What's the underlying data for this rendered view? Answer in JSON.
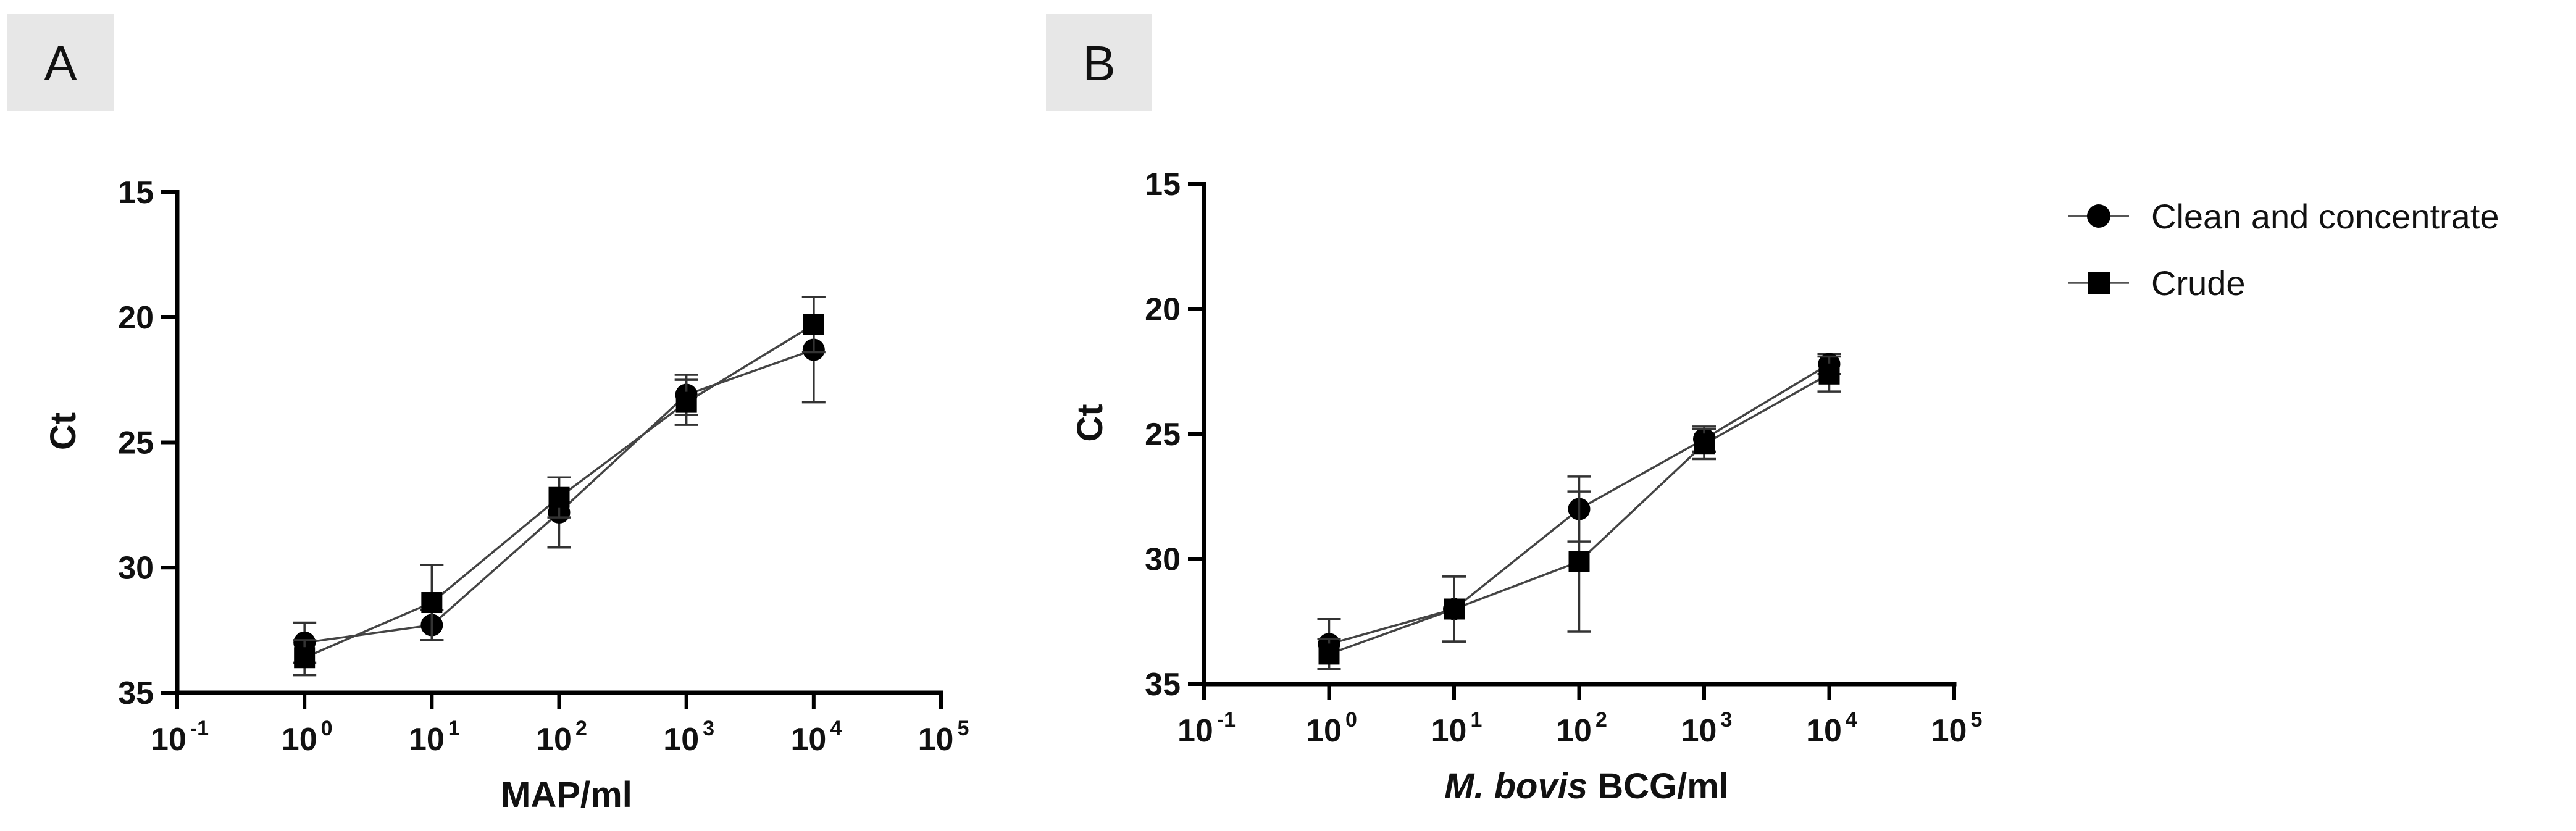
{
  "panels": [
    {
      "letter": "A"
    },
    {
      "letter": "B"
    }
  ],
  "legend": {
    "entries": [
      {
        "label": "Clean and concentrate",
        "marker": "circle"
      },
      {
        "label": "Crude",
        "marker": "square"
      }
    ]
  },
  "chart_data": [
    {
      "type": "line",
      "panel": "A",
      "title": "",
      "xlabel": "MAP/ml",
      "xlabel_italic_part": "",
      "ylabel": "Ct",
      "xscale": "log10",
      "xlim_exp": [
        -1,
        5
      ],
      "x_ticks": [
        {
          "base": "10",
          "exp": "-1"
        },
        {
          "base": "10",
          "exp": "0"
        },
        {
          "base": "10",
          "exp": "1"
        },
        {
          "base": "10",
          "exp": "2"
        },
        {
          "base": "10",
          "exp": "3"
        },
        {
          "base": "10",
          "exp": "4"
        },
        {
          "base": "10",
          "exp": "5"
        }
      ],
      "y_inverted": true,
      "ylim": [
        15,
        35
      ],
      "y_ticks": [
        "15",
        "20",
        "25",
        "30",
        "35"
      ],
      "x_exp": [
        0,
        1,
        2,
        3,
        4
      ],
      "series": [
        {
          "name": "Clean and concentrate",
          "marker": "circle",
          "values": [
            33.0,
            32.3,
            27.8,
            23.1,
            21.3
          ],
          "err": [
            0.8,
            0.6,
            1.4,
            0.8,
            2.1
          ]
        },
        {
          "name": "Crude",
          "marker": "square",
          "values": [
            33.6,
            31.4,
            27.2,
            23.4,
            20.3
          ],
          "err": [
            0.7,
            1.5,
            0.8,
            0.9,
            1.1
          ]
        }
      ]
    },
    {
      "type": "line",
      "panel": "B",
      "title": "",
      "xlabel": " BCG/ml",
      "xlabel_italic_part": "M. bovis",
      "ylabel": "Ct",
      "xscale": "log10",
      "xlim_exp": [
        -1,
        5
      ],
      "x_ticks": [
        {
          "base": "10",
          "exp": "-1"
        },
        {
          "base": "10",
          "exp": "0"
        },
        {
          "base": "10",
          "exp": "1"
        },
        {
          "base": "10",
          "exp": "2"
        },
        {
          "base": "10",
          "exp": "3"
        },
        {
          "base": "10",
          "exp": "4"
        },
        {
          "base": "10",
          "exp": "5"
        }
      ],
      "y_inverted": true,
      "ylim": [
        15,
        35
      ],
      "y_ticks": [
        "15",
        "20",
        "25",
        "30",
        "35"
      ],
      "x_exp": [
        0,
        1,
        2,
        3,
        4
      ],
      "series": [
        {
          "name": "Clean and concentrate",
          "marker": "circle",
          "values": [
            33.4,
            32.0,
            28.0,
            25.2,
            22.2
          ],
          "err": [
            1.0,
            1.3,
            1.3,
            0.5,
            0.4
          ]
        },
        {
          "name": "Crude",
          "marker": "square",
          "values": [
            33.8,
            32.0,
            30.1,
            25.4,
            22.6
          ],
          "err": [
            0.6,
            1.3,
            2.8,
            0.6,
            0.7
          ]
        }
      ]
    }
  ]
}
